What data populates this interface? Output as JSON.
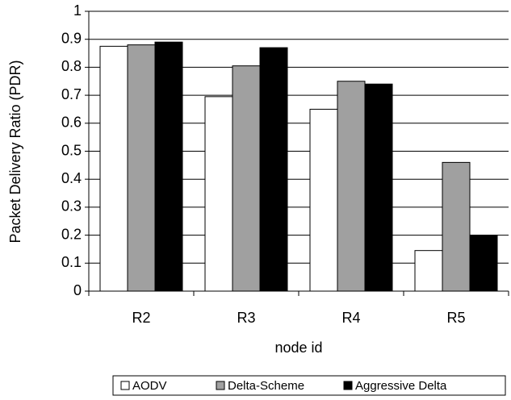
{
  "chart_data": {
    "type": "bar",
    "x_label": "node id",
    "y_label": "Packet Delivery Ratio (PDR)",
    "categories": [
      "R2",
      "R3",
      "R4",
      "R5"
    ],
    "series": [
      {
        "name": "AODV",
        "color": "#ffffff",
        "values": [
          0.875,
          0.695,
          0.65,
          0.145
        ]
      },
      {
        "name": "Delta-Scheme",
        "color": "#a0a0a0",
        "values": [
          0.88,
          0.805,
          0.75,
          0.46
        ]
      },
      {
        "name": "Aggressive Delta",
        "color": "#000000",
        "values": [
          0.89,
          0.87,
          0.74,
          0.2
        ]
      }
    ],
    "ylim": [
      0,
      1
    ],
    "yticks": [
      0,
      0.1,
      0.2,
      0.3,
      0.4,
      0.5,
      0.6,
      0.7,
      0.8,
      0.9,
      1
    ],
    "grid": true,
    "legend": "bottom"
  }
}
